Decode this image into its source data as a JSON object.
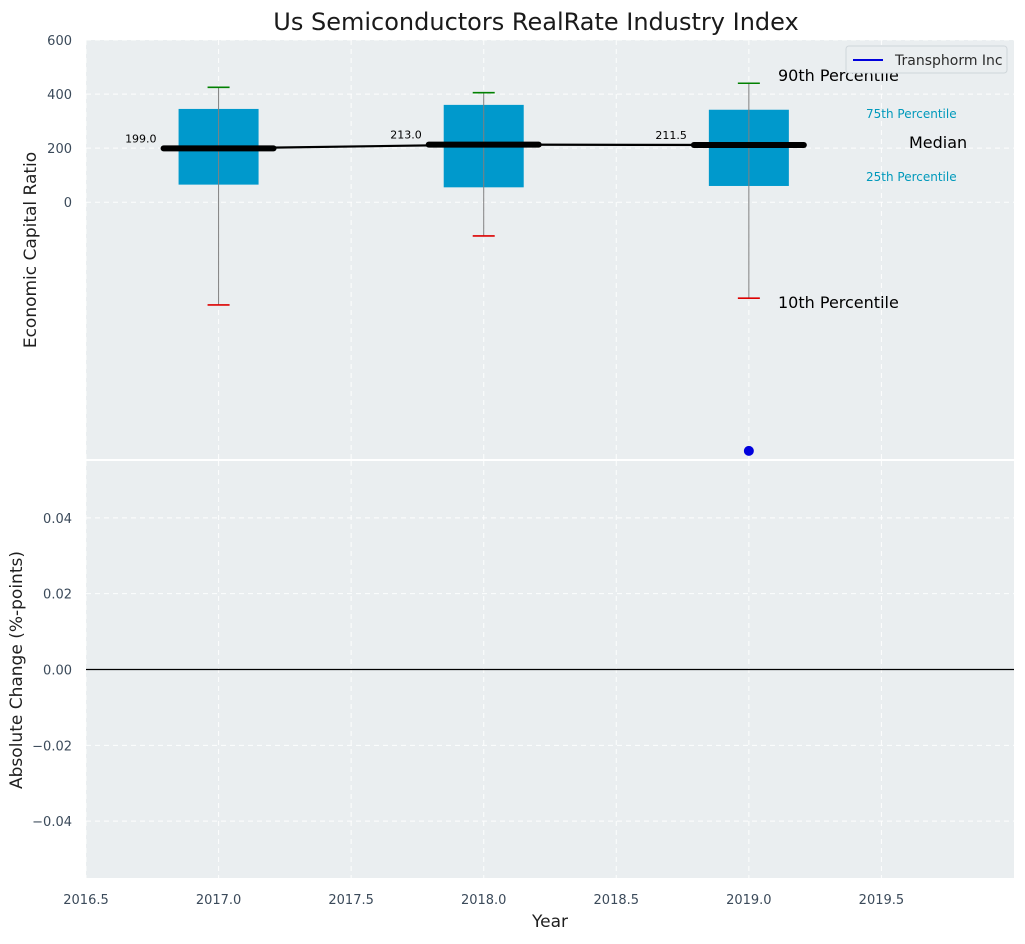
{
  "chart_data": {
    "type": "box",
    "title": "Us Semiconductors RealRate Industry Index",
    "xlabel": "Year",
    "top_panel": {
      "ylabel": "Economic Capital Ratio",
      "ylim": [
        -950,
        600
      ],
      "yticks": [
        0,
        200,
        400,
        600
      ],
      "xlim": [
        2016.5,
        2020.0
      ],
      "grid": true,
      "boxes": [
        {
          "year": 2017,
          "p10": -380,
          "p25": 65,
          "median": 199,
          "p75": 345,
          "p90": 425,
          "median_label": "199.0"
        },
        {
          "year": 2018,
          "p10": -125,
          "p25": 55,
          "median": 213,
          "p75": 360,
          "p90": 405,
          "median_label": "213.0"
        },
        {
          "year": 2019,
          "p10": -355,
          "p25": 60,
          "median": 211.5,
          "p75": 342,
          "p90": 440,
          "median_label": "211.5"
        }
      ],
      "median_line": {
        "x": [
          2017,
          2018,
          2019
        ],
        "y": [
          199,
          213,
          211.5
        ]
      },
      "company_series": {
        "name": "Transphorm Inc",
        "color": "#0000dd",
        "points": [
          {
            "x": 2019,
            "y": -920
          }
        ]
      },
      "annotations": {
        "p90": "90th Percentile",
        "p75": "75th Percentile",
        "median": "Median",
        "p25": "25th Percentile",
        "p10": "10th Percentile"
      },
      "legend": {
        "position": "top-right",
        "label": "Transphorm Inc"
      }
    },
    "bottom_panel": {
      "ylabel": "Absolute Change (%-points)",
      "ylim": [
        -0.055,
        0.055
      ],
      "yticks": [
        0.04,
        0.02,
        0.0,
        -0.02,
        -0.04
      ],
      "ytick_labels": [
        "0.04",
        "0.02",
        "0.00",
        "−0.02",
        "−0.04"
      ],
      "zero_line": true,
      "grid": true
    },
    "xticks": [
      2016.5,
      2017.0,
      2017.5,
      2018.0,
      2018.5,
      2019.0,
      2019.5
    ],
    "xtick_labels": [
      "2016.5",
      "2017.0",
      "2017.5",
      "2018.0",
      "2018.5",
      "2019.0",
      "2019.5"
    ],
    "colors": {
      "panel_bg": "#eaeef0",
      "box": "#0099cc",
      "median": "#000000",
      "p90_cap": "#008000",
      "p10_cap": "#dd0000",
      "whisker": "#808080",
      "annotation_cyan": "#0099bb",
      "company": "#0000dd"
    }
  }
}
